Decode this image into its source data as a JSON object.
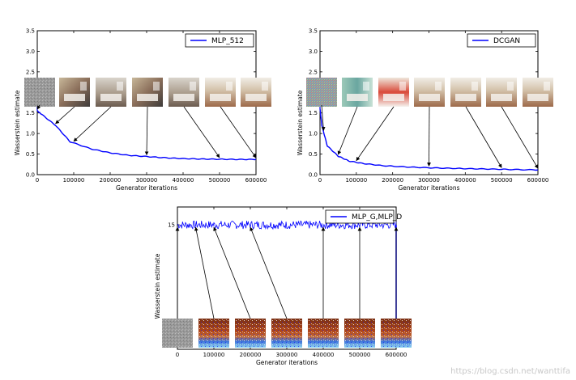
{
  "watermark": "https://blog.csdn.net/wanttifa",
  "colors": {
    "line": "#0000ff",
    "axis": "#000000",
    "background": "#ffffff"
  },
  "chart_data": [
    {
      "type": "line",
      "series": [
        {
          "name": "MLP_512",
          "values": [
            1.55,
            1.48,
            1.2,
            0.8,
            0.62,
            0.53,
            0.47,
            0.44,
            0.41,
            0.39,
            0.38,
            0.375,
            0.37,
            0.37
          ],
          "x": [
            0,
            10000,
            50000,
            90000,
            150000,
            200000,
            250000,
            300000,
            350000,
            400000,
            450000,
            500000,
            550000,
            600000
          ]
        }
      ],
      "legend": "MLP_512",
      "xlabel": "Generator iterations",
      "ylabel": "Wasserstein estimate",
      "xlim": [
        0,
        600000
      ],
      "ylim": [
        0,
        3.5
      ],
      "xticks": [
        "0",
        "100000",
        "200000",
        "300000",
        "400000",
        "500000",
        "600000"
      ],
      "yticks": [
        "0.0",
        "0.5",
        "1.0",
        "1.5",
        "2.0",
        "2.5",
        "3.0",
        "3.5"
      ],
      "sample_iterations": [
        0,
        50000,
        100000,
        300000,
        500000,
        600000
      ]
    },
    {
      "type": "line",
      "series": [
        {
          "name": "DCGAN",
          "values": [
            1.6,
            1.2,
            0.7,
            0.45,
            0.33,
            0.27,
            0.22,
            0.19,
            0.17,
            0.155,
            0.145,
            0.135,
            0.125,
            0.115
          ],
          "x": [
            0,
            5000,
            20000,
            50000,
            80000,
            120000,
            170000,
            230000,
            290000,
            350000,
            410000,
            470000,
            530000,
            600000
          ]
        }
      ],
      "legend": "DCGAN",
      "xlabel": "Generator iterations",
      "ylabel": "Wasserstein estimate",
      "xlim": [
        0,
        600000
      ],
      "ylim": [
        0,
        3.5
      ],
      "xticks": [
        "0",
        "100000",
        "200000",
        "300000",
        "400000",
        "500000",
        "600000"
      ],
      "yticks": [
        "0.0",
        "0.5",
        "1.0",
        "1.5",
        "2.0",
        "2.5",
        "3.0",
        "3.5"
      ],
      "sample_iterations": [
        10000,
        50000,
        100000,
        300000,
        500000,
        600000
      ]
    },
    {
      "type": "line",
      "series": [
        {
          "name": "MLP_G,MLP_D",
          "mean": 1.53,
          "noise": 0.05
        }
      ],
      "legend": "MLP_G,MLP_D",
      "xlabel": "Generator iterations",
      "ylabel": "Wasserstein estimate",
      "xlim": [
        0,
        600000
      ],
      "ylim": [
        0,
        1.75
      ],
      "xticks": [
        "0",
        "100000",
        "200000",
        "300000",
        "400000",
        "500000",
        "600000"
      ],
      "yticks": [
        "15"
      ],
      "sample_iterations": [
        0,
        50000,
        100000,
        200000,
        400000,
        500000,
        600000
      ]
    }
  ]
}
